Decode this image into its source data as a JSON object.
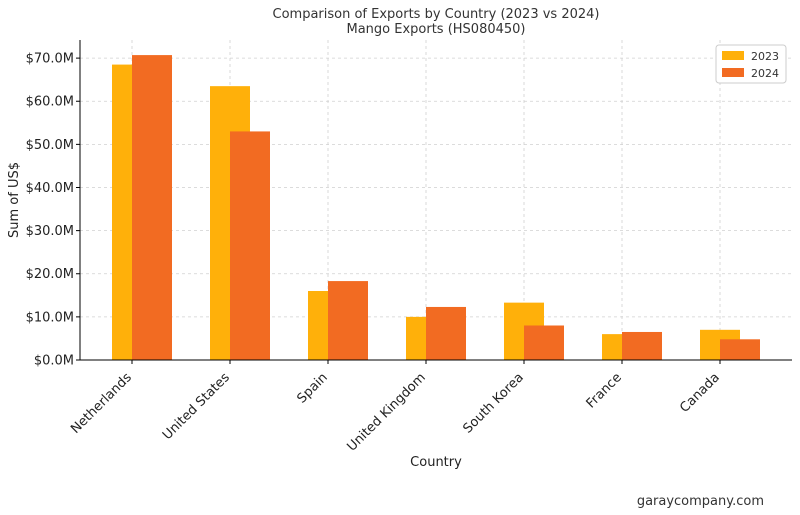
{
  "chart_data": {
    "type": "bar",
    "title": "Comparison of Exports by Country (2023 vs 2024)",
    "subtitle": "Mango Exports (HS080450)",
    "xlabel": "Country",
    "ylabel": "Sum of US$",
    "categories": [
      "Netherlands",
      "United States",
      "Spain",
      "United Kingdom",
      "South Korea",
      "France",
      "Canada"
    ],
    "series": [
      {
        "name": "2023",
        "color": "#FFB00A",
        "values": [
          68.5,
          63.5,
          16.0,
          10.0,
          13.3,
          6.0,
          7.0
        ]
      },
      {
        "name": "2024",
        "color": "#F26B22",
        "values": [
          70.7,
          53.0,
          18.3,
          12.3,
          8.0,
          6.5,
          4.8
        ]
      }
    ],
    "ylim": [
      0,
      74.2
    ],
    "yticks": [
      0,
      10,
      20,
      30,
      40,
      50,
      60,
      70
    ],
    "ytick_labels": [
      "$0.0M",
      "$10.0M",
      "$20.0M",
      "$30.0M",
      "$40.0M",
      "$50.0M",
      "$60.0M",
      "$70.0M"
    ],
    "grid": true,
    "legend_position": "top-right"
  },
  "watermark": "garaycompany.com"
}
